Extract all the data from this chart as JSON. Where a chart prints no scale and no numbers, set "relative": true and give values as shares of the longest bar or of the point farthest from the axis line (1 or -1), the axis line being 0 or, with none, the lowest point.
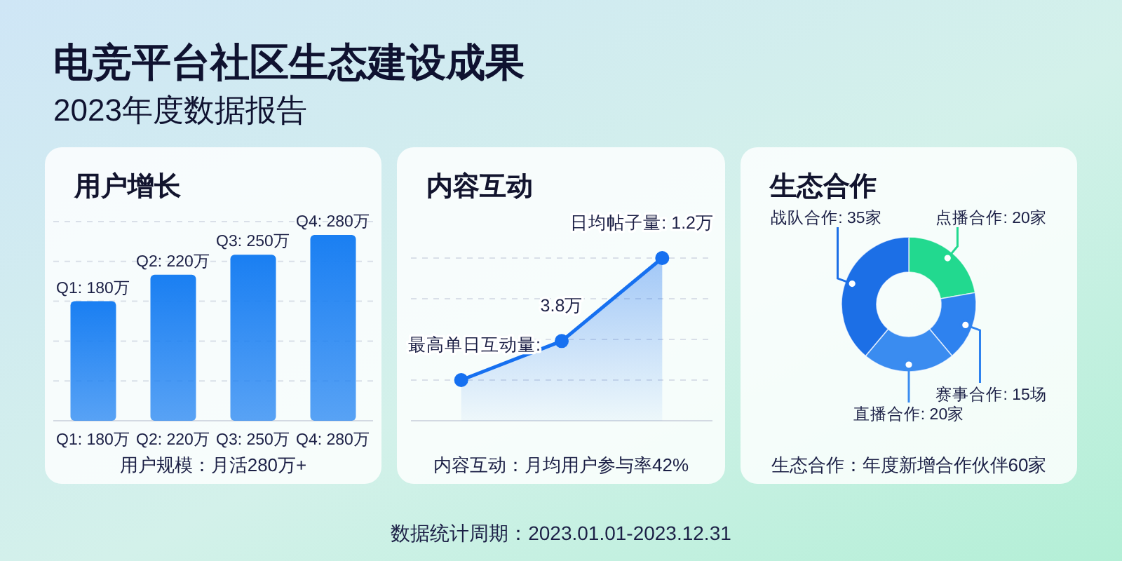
{
  "chart_data": [
    {
      "type": "other",
      "title": "电竞平台社区生态建设成果",
      "subtitle": "2023年度数据报告",
      "annotations": [
        "数据统计周期：2023.01.01-2023.12.31"
      ]
    },
    {
      "type": "bar",
      "title": "用户增长",
      "categories": [
        "Q1: 180万",
        "Q2: 220万",
        "Q3: 250万",
        "Q4: 280万"
      ],
      "values": [
        180,
        220,
        250,
        280
      ],
      "value_labels": [
        "Q1: 180万",
        "Q2: 220万",
        "Q3: 250万",
        "Q4: 280万"
      ],
      "color": "#1a7ff2",
      "ylim": [
        0,
        300
      ],
      "grid": "y",
      "tick_labels": "x",
      "annotations": [
        "用户规模：月活280万+"
      ]
    },
    {
      "type": "area",
      "title": "内容互动",
      "categories": [
        null,
        null,
        null
      ],
      "relative": true,
      "values": [
        0.25,
        0.49,
        1
      ],
      "color": "#1670f0",
      "marker": "circle",
      "grid": "y",
      "annotations": [
        "最高单日互动量:",
        "3.8万",
        "日均帖子量: 1.2万",
        "内容互动：月均用户参与率42%"
      ]
    },
    {
      "type": "donut",
      "title": "生态合作",
      "categories": [
        "点播合作",
        "赛事合作",
        "直播合作",
        "战队合作"
      ],
      "values": [
        20,
        15,
        20,
        35
      ],
      "value_labels": [
        "20家",
        "15场",
        "20家",
        "35家"
      ],
      "colors": [
        "#22d98f",
        "#2e82ef",
        "#3a8cf0",
        "#1c6fe6"
      ],
      "annotations": [
        "生态合作：年度新增合作伙伴60家"
      ]
    }
  ]
}
